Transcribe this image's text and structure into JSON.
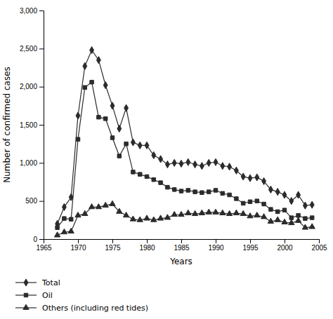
{
  "chart_data": {
    "type": "line",
    "xlabel": "Years",
    "ylabel": "Number of confirmed cases",
    "x": [
      1967,
      1968,
      1969,
      1970,
      1971,
      1972,
      1973,
      1974,
      1975,
      1976,
      1977,
      1978,
      1979,
      1980,
      1981,
      1982,
      1983,
      1984,
      1985,
      1986,
      1987,
      1988,
      1989,
      1990,
      1991,
      1992,
      1993,
      1994,
      1995,
      1996,
      1997,
      1998,
      1999,
      2000,
      2001,
      2002,
      2003,
      2004
    ],
    "series": [
      {
        "name": "Total",
        "color": "#2b2b2b",
        "marker": "diamond",
        "values": [
          200,
          420,
          550,
          1620,
          2270,
          2480,
          2350,
          2020,
          1750,
          1450,
          1720,
          1270,
          1230,
          1230,
          1100,
          1050,
          980,
          1000,
          990,
          1010,
          980,
          960,
          1000,
          1010,
          960,
          950,
          900,
          820,
          800,
          810,
          760,
          650,
          620,
          580,
          500,
          580,
          440,
          450
        ]
      },
      {
        "name": "Oil",
        "color": "#2b2b2b",
        "marker": "square",
        "values": [
          150,
          270,
          260,
          1310,
          1990,
          2060,
          1600,
          1580,
          1330,
          1090,
          1250,
          880,
          850,
          820,
          780,
          740,
          680,
          650,
          630,
          640,
          620,
          610,
          620,
          640,
          600,
          580,
          530,
          470,
          490,
          500,
          460,
          390,
          360,
          380,
          280,
          310,
          270,
          280
        ]
      },
      {
        "name": "Others (including red tides)",
        "color": "#2b2b2b",
        "marker": "triangle",
        "values": [
          50,
          90,
          100,
          310,
          330,
          420,
          420,
          440,
          460,
          360,
          310,
          260,
          250,
          270,
          250,
          270,
          280,
          320,
          320,
          340,
          330,
          340,
          350,
          350,
          340,
          330,
          340,
          330,
          300,
          310,
          290,
          230,
          250,
          220,
          210,
          240,
          150,
          160
        ]
      }
    ],
    "xlim": [
      1965,
      2005
    ],
    "ylim": [
      0,
      3000
    ],
    "xticks": [
      1965,
      1970,
      1975,
      1980,
      1985,
      1990,
      1995,
      2000,
      2005
    ],
    "yticks": [
      0,
      500,
      {
        "value": 1000,
        "label": "1,000"
      },
      {
        "value": 1500,
        "label": "1,500"
      },
      {
        "value": 2000,
        "label": "2,000"
      },
      {
        "value": 2500,
        "label": "2,500"
      },
      {
        "value": 3000,
        "label": "3,000"
      }
    ],
    "grid": false,
    "legend": "bottom-left"
  }
}
